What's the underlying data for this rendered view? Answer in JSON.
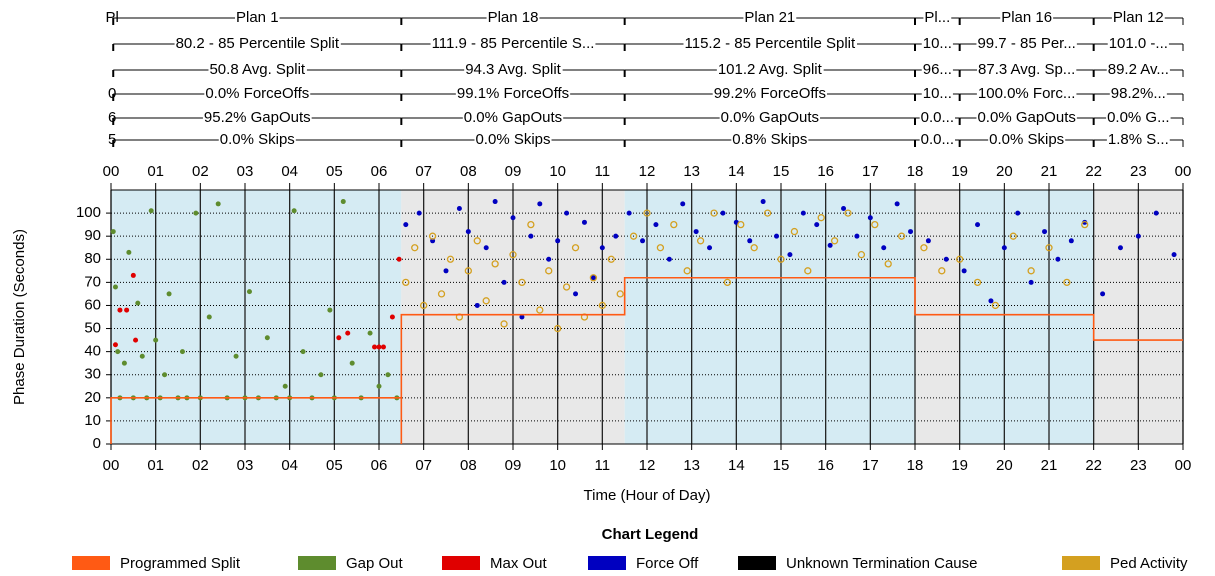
{
  "chart_data": {
    "type": "scatter",
    "ylabel": "Phase Duration (Seconds)",
    "xlabel": "Time (Hour of Day)",
    "legend_title": "Chart Legend",
    "xlim": [
      0,
      24
    ],
    "xticks": [
      {
        "value": 0,
        "label": "00"
      },
      {
        "value": 1,
        "label": "01"
      },
      {
        "value": 2,
        "label": "02"
      },
      {
        "value": 3,
        "label": "03"
      },
      {
        "value": 4,
        "label": "04"
      },
      {
        "value": 5,
        "label": "05"
      },
      {
        "value": 6,
        "label": "06"
      },
      {
        "value": 7,
        "label": "07"
      },
      {
        "value": 8,
        "label": "08"
      },
      {
        "value": 9,
        "label": "09"
      },
      {
        "value": 10,
        "label": "10"
      },
      {
        "value": 11,
        "label": "11"
      },
      {
        "value": 12,
        "label": "12"
      },
      {
        "value": 13,
        "label": "13"
      },
      {
        "value": 14,
        "label": "14"
      },
      {
        "value": 15,
        "label": "15"
      },
      {
        "value": 16,
        "label": "16"
      },
      {
        "value": 17,
        "label": "17"
      },
      {
        "value": 18,
        "label": "18"
      },
      {
        "value": 19,
        "label": "19"
      },
      {
        "value": 20,
        "label": "20"
      },
      {
        "value": 21,
        "label": "21"
      },
      {
        "value": 22,
        "label": "22"
      },
      {
        "value": 23,
        "label": "23"
      },
      {
        "value": 24,
        "label": "00"
      }
    ],
    "ylim": [
      0,
      110
    ],
    "yticks": [
      0,
      10,
      20,
      30,
      40,
      50,
      60,
      70,
      80,
      90,
      100
    ],
    "grid": true,
    "row_colors": {
      "name": "#000000",
      "percentile": "#a020a0",
      "avg": "#000000",
      "forceoffs": "#2424c8",
      "gapouts": "#8c9c30",
      "skips": "#000000"
    },
    "plans": [
      {
        "start": 0,
        "end": 0.05,
        "fill": "#d5ebf3",
        "name": "Pl",
        "forceoffs": "0",
        "gapouts": "6",
        "skips": "5"
      },
      {
        "start": 0.05,
        "end": 6.5,
        "fill": "#d5ebf3",
        "name": "Plan 1",
        "percentile": "80.2 - 85 Percentile Split",
        "avg": "50.8 Avg. Split",
        "forceoffs": "0.0% ForceOffs",
        "gapouts": "95.2% GapOuts",
        "skips": "0.0% Skips"
      },
      {
        "start": 6.5,
        "end": 11.5,
        "fill": "#e8e8e8",
        "name": "Plan 18",
        "percentile": "111.9 - 85 Percentile S...",
        "avg": "94.3 Avg. Split",
        "forceoffs": "99.1% ForceOffs",
        "gapouts": "0.0% GapOuts",
        "skips": "0.0% Skips"
      },
      {
        "start": 11.5,
        "end": 18,
        "fill": "#d5ebf3",
        "name": "Plan 21",
        "percentile": "115.2 - 85 Percentile Split",
        "avg": "101.2 Avg. Split",
        "forceoffs": "99.2% ForceOffs",
        "gapouts": "0.0% GapOuts",
        "skips": "0.8% Skips"
      },
      {
        "start": 18,
        "end": 19,
        "fill": "#e8e8e8",
        "name": "Pl...",
        "percentile": "10...",
        "avg": "96...",
        "forceoffs": "10...",
        "gapouts": "0.0...",
        "skips": "0.0..."
      },
      {
        "start": 19,
        "end": 22,
        "fill": "#d5ebf3",
        "name": "Plan 16",
        "percentile": "99.7 - 85 Per...",
        "avg": "87.3 Avg. Sp...",
        "forceoffs": "100.0% Forc...",
        "gapouts": "0.0% GapOuts",
        "skips": "0.0% Skips"
      },
      {
        "start": 22,
        "end": 24,
        "fill": "#e8e8e8",
        "name": "Plan 12",
        "percentile": "101.0 -...",
        "avg": "89.2 Av...",
        "forceoffs": "98.2%...",
        "gapouts": "0.0% G...",
        "skips": "1.8% S..."
      }
    ],
    "series": [
      {
        "name": "Programmed Split",
        "color": "#ff5a14",
        "mark": "line",
        "x": [
          0,
          0,
          6.5,
          6.5,
          6.5,
          11.5,
          11.5,
          18,
          18,
          22,
          22,
          24
        ],
        "values": [
          0,
          20,
          20,
          0,
          56,
          56,
          72,
          72,
          56,
          56,
          45,
          45
        ]
      },
      {
        "name": "Gap Out",
        "color": "#5e8c2e",
        "mark": "dot",
        "x": [
          0.05,
          0.1,
          0.15,
          0.2,
          0.3,
          0.4,
          0.5,
          0.6,
          0.7,
          0.8,
          0.9,
          1.0,
          1.1,
          1.2,
          1.3,
          1.5,
          1.6,
          1.7,
          1.9,
          2.0,
          2.2,
          2.4,
          2.6,
          2.8,
          3.0,
          3.1,
          3.3,
          3.5,
          3.7,
          3.9,
          4.0,
          4.1,
          4.3,
          4.5,
          4.7,
          4.9,
          5.0,
          5.2,
          5.4,
          5.6,
          5.8,
          6.0,
          6.2,
          6.4
        ],
        "values": [
          92,
          68,
          40,
          20,
          35,
          83,
          20,
          61,
          38,
          20,
          101,
          45,
          20,
          30,
          65,
          20,
          40,
          20,
          100,
          20,
          55,
          104,
          20,
          38,
          20,
          66,
          20,
          46,
          20,
          25,
          20,
          101,
          40,
          20,
          30,
          58,
          20,
          105,
          35,
          20,
          48,
          25,
          30,
          20
        ]
      },
      {
        "name": "Max Out",
        "color": "#e00000",
        "mark": "dot",
        "x": [
          0.1,
          0.2,
          0.35,
          0.5,
          0.55,
          5.1,
          5.3,
          5.9,
          6.0,
          6.1,
          6.3,
          6.45
        ],
        "values": [
          43,
          58,
          58,
          73,
          45,
          46,
          48,
          42,
          42,
          42,
          55,
          80
        ]
      },
      {
        "name": "Force Off",
        "color": "#0000c0",
        "mark": "dot",
        "x": [
          6.6,
          6.9,
          7.2,
          7.5,
          7.8,
          8.0,
          8.2,
          8.4,
          8.6,
          8.8,
          9.0,
          9.2,
          9.4,
          9.6,
          9.8,
          10.0,
          10.2,
          10.4,
          10.6,
          10.8,
          11.0,
          11.3,
          11.6,
          11.9,
          12.2,
          12.5,
          12.8,
          13.1,
          13.4,
          13.7,
          14.0,
          14.3,
          14.6,
          14.9,
          15.2,
          15.5,
          15.8,
          16.1,
          16.4,
          16.7,
          17.0,
          17.3,
          17.6,
          17.9,
          18.3,
          18.7,
          19.1,
          19.4,
          19.7,
          20.0,
          20.3,
          20.6,
          20.9,
          21.2,
          21.5,
          21.8,
          22.2,
          22.6,
          23.0,
          23.4,
          23.8
        ],
        "values": [
          95,
          100,
          88,
          75,
          102,
          92,
          60,
          85,
          105,
          70,
          98,
          55,
          90,
          104,
          80,
          88,
          100,
          65,
          96,
          72,
          85,
          90,
          100,
          88,
          95,
          80,
          104,
          92,
          85,
          100,
          96,
          88,
          105,
          90,
          82,
          100,
          95,
          86,
          102,
          90,
          98,
          85,
          104,
          92,
          88,
          80,
          75,
          95,
          62,
          85,
          100,
          70,
          92,
          80,
          88,
          96,
          65,
          85,
          90,
          100,
          82
        ]
      },
      {
        "name": "Unknown Termination Cause",
        "color": "#000000",
        "mark": "dot",
        "x": [],
        "values": []
      },
      {
        "name": "Ped Activity",
        "color": "#d4a020",
        "mark": "ring",
        "x": [
          6.6,
          6.8,
          7.0,
          7.2,
          7.4,
          7.6,
          7.8,
          8.0,
          8.2,
          8.4,
          8.6,
          8.8,
          9.0,
          9.2,
          9.4,
          9.6,
          9.8,
          10.0,
          10.2,
          10.4,
          10.6,
          10.8,
          11.0,
          11.2,
          11.4,
          11.7,
          12.0,
          12.3,
          12.6,
          12.9,
          13.2,
          13.5,
          13.8,
          14.1,
          14.4,
          14.7,
          15.0,
          15.3,
          15.6,
          15.9,
          16.2,
          16.5,
          16.8,
          17.1,
          17.4,
          17.7,
          18.2,
          18.6,
          19.0,
          19.4,
          19.8,
          20.2,
          20.6,
          21.0,
          21.4,
          21.8
        ],
        "values": [
          70,
          85,
          60,
          90,
          65,
          80,
          55,
          75,
          88,
          62,
          78,
          52,
          82,
          70,
          95,
          58,
          75,
          50,
          68,
          85,
          55,
          72,
          60,
          80,
          65,
          90,
          100,
          85,
          95,
          75,
          88,
          100,
          70,
          95,
          85,
          100,
          80,
          92,
          75,
          98,
          88,
          100,
          82,
          95,
          78,
          90,
          85,
          75,
          80,
          70,
          60,
          90,
          75,
          85,
          70,
          95
        ]
      }
    ]
  }
}
